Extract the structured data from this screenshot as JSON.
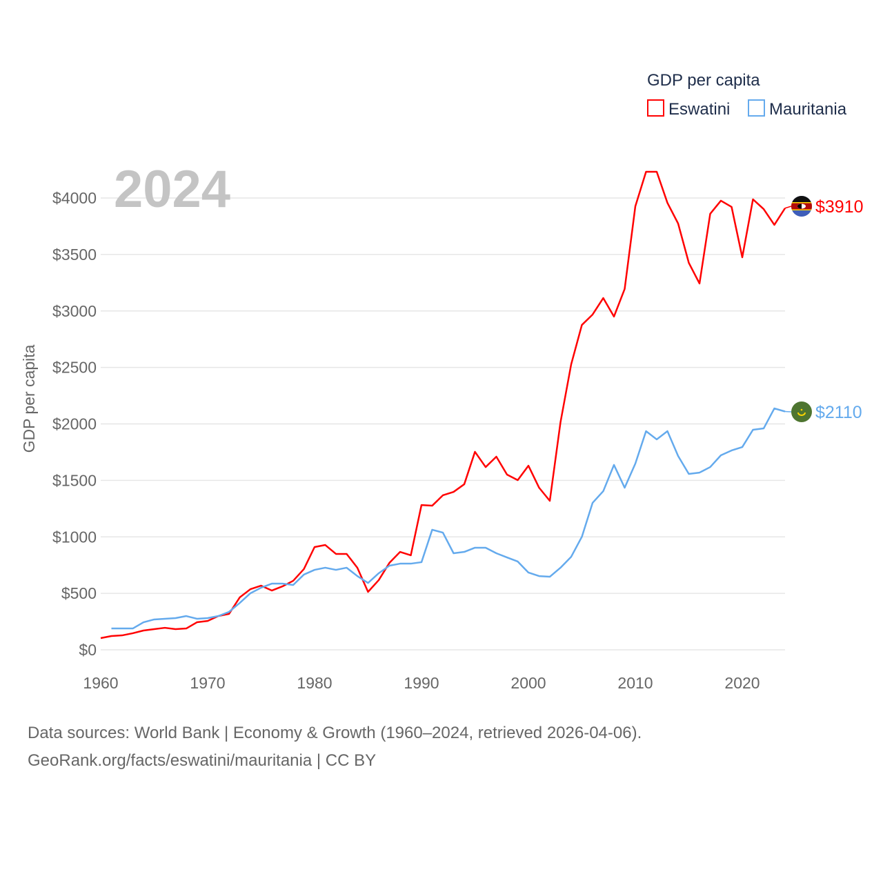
{
  "chart_data": {
    "type": "line",
    "title": "GDP per capita",
    "year_label": "2024",
    "xlabel": "",
    "ylabel": "GDP per capita",
    "xlim": [
      1960,
      2024
    ],
    "ylim": [
      0,
      4300
    ],
    "x_ticks": [
      1960,
      1970,
      1980,
      1990,
      2000,
      2010,
      2020
    ],
    "y_ticks": [
      0,
      500,
      1000,
      1500,
      2000,
      2500,
      3000,
      3500,
      4000
    ],
    "y_tick_labels": [
      "$0",
      "$500",
      "$1000",
      "$1500",
      "$2000",
      "$2500",
      "$3000",
      "$3500",
      "$4000"
    ],
    "grid": true,
    "legend_position": "top-right",
    "series": [
      {
        "name": "Eswatini",
        "color": "#ff0000",
        "end_label": "$3910",
        "flag": "eswatini-flag",
        "start_year": 1960,
        "values": [
          104,
          122,
          128,
          147,
          171,
          183,
          195,
          183,
          189,
          244,
          256,
          299,
          318,
          464,
          537,
          568,
          525,
          562,
          611,
          715,
          910,
          928,
          849,
          849,
          727,
          513,
          617,
          770,
          867,
          837,
          1282,
          1276,
          1368,
          1398,
          1466,
          1753,
          1618,
          1710,
          1551,
          1502,
          1630,
          1435,
          1319,
          2015,
          2528,
          2876,
          2968,
          3114,
          2950,
          3194,
          3927,
          4232,
          4232,
          3957,
          3774,
          3426,
          3243,
          3860,
          3976,
          3921,
          3475,
          3988,
          3902,
          3762,
          3910
        ]
      },
      {
        "name": "Mauritania",
        "color": "#64aaed",
        "end_label": "$2110",
        "flag": "mauritania-flag",
        "start_year": 1961,
        "values": [
          189,
          189,
          189,
          244,
          269,
          275,
          281,
          299,
          275,
          281,
          299,
          336,
          415,
          501,
          550,
          586,
          586,
          574,
          666,
          708,
          727,
          708,
          727,
          653,
          592,
          678,
          745,
          763,
          763,
          776,
          1063,
          1038,
          855,
          867,
          904,
          904,
          855,
          818,
          782,
          684,
          653,
          647,
          727,
          824,
          1001,
          1301,
          1405,
          1637,
          1435,
          1649,
          1936,
          1863,
          1936,
          1716,
          1557,
          1569,
          1618,
          1722,
          1765,
          1795,
          1948,
          1960,
          2137,
          2110
        ]
      }
    ]
  },
  "footer": {
    "line1": "Data sources: World Bank | Economy & Growth (1960–2024, retrieved 2026-04-06).",
    "line2": "GeoRank.org/facts/eswatini/mauritania | CC BY"
  }
}
